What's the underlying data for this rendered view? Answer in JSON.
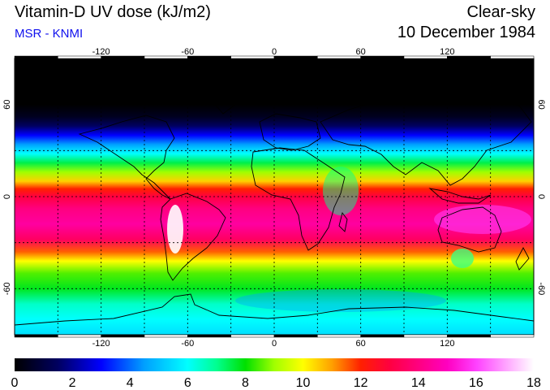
{
  "header": {
    "title": "Vitamin-D UV dose (kJ/m2)",
    "source": "MSR - KNMI",
    "condition": "Clear-sky",
    "date": "10 December 1984"
  },
  "map": {
    "projection": "equirectangular",
    "lon_range": [
      -180,
      180
    ],
    "lat_range": [
      -90,
      90
    ],
    "lon_ticks": [
      {
        "value": -120,
        "label": "-120"
      },
      {
        "value": -60,
        "label": "-60"
      },
      {
        "value": 0,
        "label": "0"
      },
      {
        "value": 60,
        "label": "60"
      },
      {
        "value": 120,
        "label": "120"
      }
    ],
    "lat_ticks": [
      {
        "value": 60,
        "label": "60"
      },
      {
        "value": 0,
        "label": "0"
      },
      {
        "value": -60,
        "label": "-60"
      }
    ],
    "grid_lines": true,
    "coastlines": true
  },
  "colorbar": {
    "min": 0,
    "max": 18,
    "labels": [
      "0",
      "2",
      "4",
      "6",
      "8",
      "10",
      "12",
      "14",
      "16",
      "18"
    ],
    "stops": [
      {
        "v": 0,
        "c": "#000000"
      },
      {
        "v": 1.5,
        "c": "#000060"
      },
      {
        "v": 3,
        "c": "#0000ff"
      },
      {
        "v": 4.5,
        "c": "#00a0ff"
      },
      {
        "v": 6,
        "c": "#00ffff"
      },
      {
        "v": 7,
        "c": "#00ff90"
      },
      {
        "v": 8,
        "c": "#00e000"
      },
      {
        "v": 9,
        "c": "#a0ff00"
      },
      {
        "v": 10,
        "c": "#ffff00"
      },
      {
        "v": 11,
        "c": "#ffa000"
      },
      {
        "v": 12,
        "c": "#ff2000"
      },
      {
        "v": 13,
        "c": "#ff0040"
      },
      {
        "v": 14,
        "c": "#ff0080"
      },
      {
        "v": 15,
        "c": "#ff00c0"
      },
      {
        "v": 16,
        "c": "#ff40ff"
      },
      {
        "v": 17,
        "c": "#ffa0ff"
      },
      {
        "v": 18,
        "c": "#ffffff"
      }
    ]
  },
  "dose_profile_by_lat": [
    {
      "lat": 90,
      "v": 0
    },
    {
      "lat": 60,
      "v": 0
    },
    {
      "lat": 52,
      "v": 0.5
    },
    {
      "lat": 46,
      "v": 1.5
    },
    {
      "lat": 40,
      "v": 3
    },
    {
      "lat": 34,
      "v": 4.5
    },
    {
      "lat": 28,
      "v": 6
    },
    {
      "lat": 22,
      "v": 7.5
    },
    {
      "lat": 16,
      "v": 9
    },
    {
      "lat": 10,
      "v": 10.5
    },
    {
      "lat": 5,
      "v": 12
    },
    {
      "lat": 0,
      "v": 13
    },
    {
      "lat": -8,
      "v": 14
    },
    {
      "lat": -18,
      "v": 14.5
    },
    {
      "lat": -28,
      "v": 13.5
    },
    {
      "lat": -36,
      "v": 11.5
    },
    {
      "lat": -42,
      "v": 10
    },
    {
      "lat": -50,
      "v": 8.5
    },
    {
      "lat": -60,
      "v": 7.8
    },
    {
      "lat": -70,
      "v": 6.5
    },
    {
      "lat": -80,
      "v": 6
    },
    {
      "lat": -90,
      "v": 5.5
    }
  ]
}
